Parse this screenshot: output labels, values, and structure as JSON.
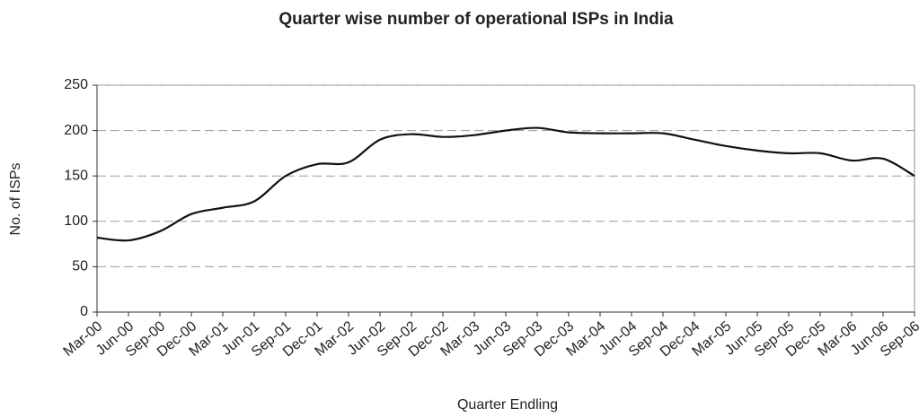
{
  "chart_data": {
    "type": "line",
    "title": "Quarter wise number of operational ISPs in India",
    "xlabel": "Quarter Endling",
    "ylabel": "No. of ISPs",
    "categories": [
      "Mar-00",
      "Jun-00",
      "Sep-00",
      "Dec-00",
      "Mar-01",
      "Jun-01",
      "Sep-01",
      "Dec-01",
      "Mar-02",
      "Jun-02",
      "Sep-02",
      "Dec-02",
      "Mar-03",
      "Jun-03",
      "Sep-03",
      "Dec-03",
      "Mar-04",
      "Jun-04",
      "Sep-04",
      "Dec-04",
      "Mar-05",
      "Jun-05",
      "Sep-05",
      "Dec-05",
      "Mar-06",
      "Jun-06",
      "Sep-06"
    ],
    "values": [
      82,
      79,
      89,
      108,
      115,
      122,
      150,
      163,
      165,
      190,
      196,
      193,
      195,
      200,
      203,
      198,
      197,
      197,
      197,
      190,
      183,
      178,
      175,
      175,
      167,
      169,
      150
    ],
    "color": "#111111",
    "ylim": [
      0,
      250
    ],
    "yticks": [
      0,
      50,
      100,
      150,
      200,
      250
    ],
    "grid": true
  }
}
